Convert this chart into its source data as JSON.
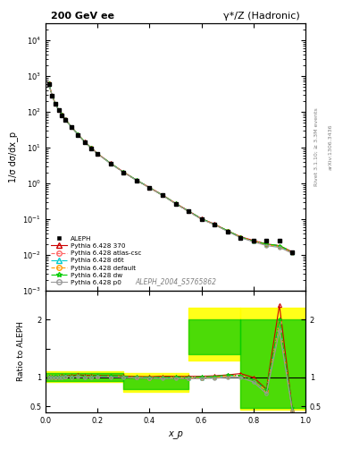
{
  "title_left": "200 GeV ee",
  "title_right": "γ*/Z (Hadronic)",
  "ylabel_main": "1/σ dσ/dx_p",
  "ylabel_ratio": "Ratio to ALEPH",
  "xlabel": "x_p",
  "watermark": "ALEPH_2004_S5765862",
  "rivet_label": "Rivet 3.1.10; ≥ 3.3M events",
  "arxiv_label": "arXiv:1306.3436",
  "xp": [
    0.012,
    0.025,
    0.037,
    0.05,
    0.062,
    0.075,
    0.1,
    0.125,
    0.15,
    0.175,
    0.2,
    0.25,
    0.3,
    0.35,
    0.4,
    0.45,
    0.5,
    0.55,
    0.6,
    0.65,
    0.7,
    0.75,
    0.8,
    0.85,
    0.9,
    0.95
  ],
  "aleph_y": [
    600,
    280,
    165,
    110,
    80,
    60,
    36,
    22,
    14,
    9.5,
    6.5,
    3.5,
    2.0,
    1.2,
    0.75,
    0.46,
    0.27,
    0.165,
    0.1,
    0.07,
    0.045,
    0.03,
    0.025,
    0.025,
    0.025,
    0.012
  ],
  "pythia_370_y": [
    610,
    285,
    168,
    112,
    82,
    62,
    37,
    23,
    14.5,
    9.8,
    6.7,
    3.6,
    2.05,
    1.22,
    0.76,
    0.47,
    0.275,
    0.168,
    0.102,
    0.072,
    0.047,
    0.032,
    0.025,
    0.02,
    0.018,
    0.012
  ],
  "pythia_atl_y": [
    605,
    282,
    166,
    111,
    81,
    61,
    36.5,
    22.5,
    14.2,
    9.6,
    6.6,
    3.55,
    2.02,
    1.2,
    0.74,
    0.46,
    0.268,
    0.163,
    0.099,
    0.07,
    0.046,
    0.031,
    0.024,
    0.019,
    0.017,
    0.011
  ],
  "pythia_d6t_y": [
    608,
    283,
    167,
    111,
    81,
    61,
    36.5,
    22.5,
    14.2,
    9.6,
    6.6,
    3.55,
    2.02,
    1.21,
    0.75,
    0.46,
    0.27,
    0.164,
    0.1,
    0.071,
    0.046,
    0.031,
    0.024,
    0.019,
    0.017,
    0.011
  ],
  "pythia_def_y": [
    605,
    282,
    166,
    111,
    81,
    61,
    36.5,
    22.5,
    14.2,
    9.6,
    6.6,
    3.55,
    2.02,
    1.2,
    0.74,
    0.46,
    0.268,
    0.163,
    0.099,
    0.07,
    0.046,
    0.031,
    0.024,
    0.019,
    0.017,
    0.011
  ],
  "pythia_dw_y": [
    608,
    283,
    167,
    111,
    81,
    61.5,
    36.5,
    22.8,
    14.3,
    9.7,
    6.65,
    3.58,
    2.04,
    1.21,
    0.75,
    0.46,
    0.272,
    0.166,
    0.101,
    0.071,
    0.047,
    0.031,
    0.024,
    0.02,
    0.018,
    0.012
  ],
  "pythia_p0_y": [
    602,
    280,
    165,
    110,
    80,
    61,
    36.2,
    22.3,
    14.0,
    9.5,
    6.55,
    3.52,
    2.0,
    1.19,
    0.74,
    0.455,
    0.266,
    0.162,
    0.098,
    0.069,
    0.045,
    0.03,
    0.023,
    0.018,
    0.016,
    0.011
  ],
  "ratio_xp": [
    0.012,
    0.025,
    0.037,
    0.05,
    0.062,
    0.075,
    0.1,
    0.125,
    0.15,
    0.175,
    0.2,
    0.25,
    0.3,
    0.35,
    0.4,
    0.45,
    0.5,
    0.55,
    0.6,
    0.65,
    0.7,
    0.75,
    0.8,
    0.85,
    0.9,
    0.95
  ],
  "ratio_370": [
    1.02,
    1.02,
    1.02,
    1.02,
    1.025,
    1.03,
    1.03,
    1.045,
    1.036,
    1.032,
    1.031,
    1.029,
    1.025,
    1.017,
    1.013,
    1.022,
    1.019,
    1.018,
    1.02,
    1.029,
    1.044,
    1.067,
    1.0,
    0.8,
    2.25,
    0.45
  ],
  "ratio_atl": [
    1.008,
    1.007,
    1.006,
    1.009,
    1.0125,
    1.017,
    1.014,
    1.023,
    1.014,
    1.011,
    1.015,
    1.014,
    1.01,
    1.0,
    0.987,
    1.0,
    0.993,
    0.988,
    0.99,
    1.0,
    1.022,
    1.033,
    0.96,
    0.76,
    1.95,
    0.42
  ],
  "ratio_d6t": [
    1.013,
    1.011,
    1.012,
    1.013,
    1.0125,
    1.017,
    1.014,
    1.023,
    1.014,
    1.011,
    1.015,
    1.014,
    1.01,
    1.0,
    1.0,
    1.0,
    0.993,
    0.988,
    0.99,
    1.0,
    1.022,
    1.033,
    0.96,
    0.76,
    1.95,
    0.42
  ],
  "ratio_def": [
    1.008,
    1.007,
    1.006,
    1.009,
    1.0125,
    1.017,
    1.014,
    1.023,
    1.014,
    1.011,
    1.015,
    1.014,
    1.01,
    1.0,
    0.987,
    1.0,
    0.993,
    0.988,
    0.99,
    1.0,
    1.022,
    1.033,
    0.96,
    0.76,
    1.95,
    0.42
  ],
  "ratio_dw": [
    1.013,
    1.011,
    1.012,
    1.013,
    1.013,
    1.025,
    1.014,
    1.036,
    1.021,
    1.021,
    1.023,
    1.023,
    1.02,
    1.008,
    1.0,
    1.0,
    1.007,
    1.006,
    1.01,
    1.014,
    1.044,
    1.033,
    0.96,
    0.8,
    2.0,
    0.47
  ],
  "ratio_p0": [
    1.003,
    1.0,
    1.0,
    1.0,
    1.0,
    1.017,
    1.006,
    1.009,
    1.0,
    1.0,
    1.008,
    1.006,
    1.0,
    0.992,
    0.987,
    0.978,
    0.985,
    0.982,
    0.98,
    0.986,
    1.0,
    1.0,
    0.92,
    0.72,
    1.8,
    0.43
  ],
  "band_yellow_x": [
    0.0,
    0.3,
    0.3,
    0.55,
    0.55,
    0.75,
    0.75,
    1.0,
    1.0,
    0.75,
    0.75,
    0.55,
    0.55,
    0.3,
    0.3,
    0.0
  ],
  "band_yellow_y": [
    1.1,
    1.1,
    0.9,
    0.75,
    1.35,
    1.85,
    2.2,
    2.2,
    0.45,
    0.45,
    0.5,
    0.65,
    0.8,
    0.8,
    0.9,
    0.9
  ],
  "band_green_x": [
    0.0,
    0.3,
    0.3,
    0.55,
    0.55,
    0.75,
    0.75,
    1.0,
    1.0,
    0.75,
    0.75,
    0.55,
    0.55,
    0.3,
    0.3,
    0.0
  ],
  "band_green_y": [
    1.07,
    1.07,
    0.93,
    0.8,
    1.25,
    1.95,
    2.0,
    2.0,
    0.47,
    0.47,
    0.6,
    0.75,
    0.85,
    0.85,
    0.95,
    0.95
  ],
  "color_370": "#cc0000",
  "color_atl": "#ff6666",
  "color_d6t": "#00cccc",
  "color_def": "#ff9900",
  "color_dw": "#00cc00",
  "color_p0": "#999999",
  "color_aleph": "#000000",
  "bg_color": "#ffffff",
  "ylim_main": [
    0.001,
    30000.0
  ],
  "ylim_ratio": [
    0.4,
    2.5
  ],
  "xlim": [
    0.0,
    1.0
  ]
}
